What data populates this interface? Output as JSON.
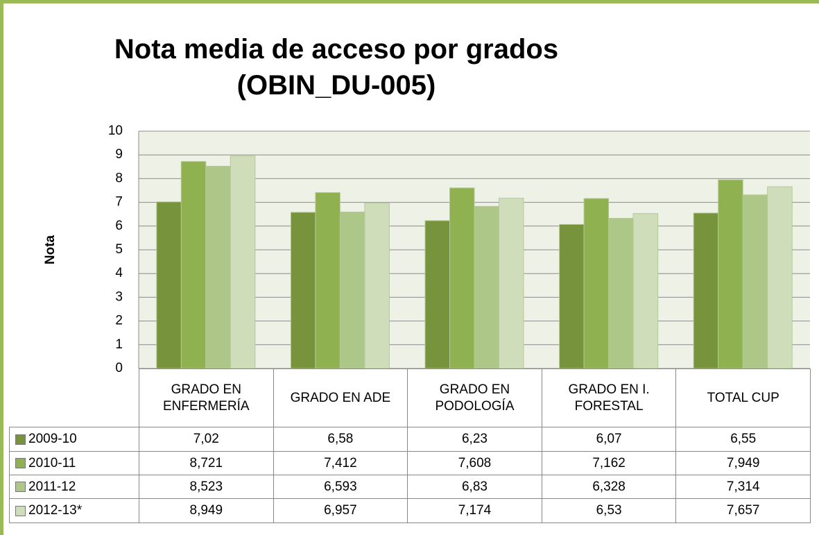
{
  "chart_data": {
    "type": "bar",
    "title": "Nota media de acceso por grados  (OBIN_DU-005)",
    "y_label": "Nota",
    "categories": [
      "GRADO EN ENFERMERÍA",
      "GRADO EN ADE",
      "GRADO EN PODOLOGÍA",
      "GRADO EN I. FORESTAL",
      "TOTAL CUP"
    ],
    "series": [
      {
        "name": "2009-10",
        "color": "#77933c",
        "values": [
          7.02,
          6.58,
          6.23,
          6.07,
          6.55
        ],
        "value_labels": [
          "7,02",
          "6,58",
          "6,23",
          "6,07",
          "6,55"
        ]
      },
      {
        "name": "2010-11",
        "color": "#8fb150",
        "values": [
          8.721,
          7.412,
          7.608,
          7.162,
          7.949
        ],
        "value_labels": [
          "8,721",
          "7,412",
          "7,608",
          "7,162",
          "7,949"
        ]
      },
      {
        "name": "2011-12",
        "color": "#adc788",
        "values": [
          8.523,
          6.593,
          6.83,
          6.328,
          7.314
        ],
        "value_labels": [
          "8,523",
          "6,593",
          "6,83",
          "6,328",
          "7,314"
        ]
      },
      {
        "name": "2012-13*",
        "color": "#cfddbb",
        "values": [
          8.949,
          6.957,
          7.174,
          6.53,
          7.657
        ],
        "value_labels": [
          "8,949",
          "6,957",
          "7,174",
          "6,53",
          "7,657"
        ]
      }
    ],
    "ylim": [
      0,
      10
    ],
    "yticks": [
      0,
      1,
      2,
      3,
      4,
      5,
      6,
      7,
      8,
      9,
      10
    ],
    "grid": true
  }
}
